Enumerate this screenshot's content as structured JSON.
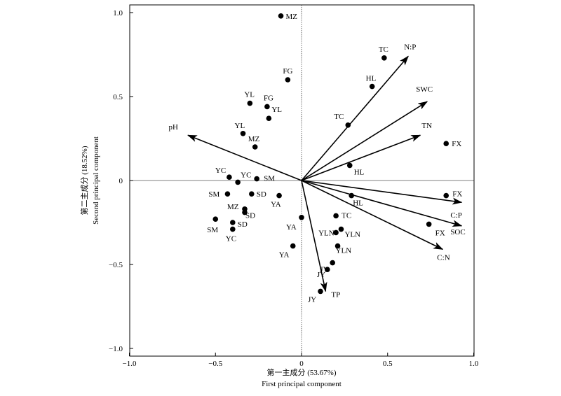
{
  "chart_data": {
    "type": "scatter",
    "xlabel_cn": "第一主成分 (53.67%)",
    "xlabel_en": "First principal component",
    "ylabel_cn": "第二主成分 (18.52%)",
    "ylabel_en": "Second principal component",
    "xlim": [
      -1.0,
      1.0
    ],
    "ylim": [
      -1.0,
      1.0
    ],
    "xticks": [
      {
        "value": -1.0,
        "label": "−1.0"
      },
      {
        "value": -0.5,
        "label": "−0.5"
      },
      {
        "value": 0,
        "label": "0"
      },
      {
        "value": 0.5,
        "label": "0.5"
      },
      {
        "value": 1.0,
        "label": "1.0"
      }
    ],
    "yticks": [
      {
        "value": 1.0,
        "label": "1.0"
      },
      {
        "value": 0.5,
        "label": "0.5"
      },
      {
        "value": 0,
        "label": "0"
      },
      {
        "value": -0.5,
        "label": "−0.5"
      },
      {
        "value": -1.0,
        "label": "−1.0"
      }
    ],
    "vectors": [
      {
        "name": "pH",
        "x": -0.66,
        "y": 0.27
      },
      {
        "name": "N:P",
        "x": 0.62,
        "y": 0.74
      },
      {
        "name": "SWC",
        "x": 0.73,
        "y": 0.47
      },
      {
        "name": "TN",
        "x": 0.69,
        "y": 0.27
      },
      {
        "name": "C:P",
        "x": 0.93,
        "y": -0.13
      },
      {
        "name": "SOC",
        "x": 0.93,
        "y": -0.27
      },
      {
        "name": "C:N",
        "x": 0.82,
        "y": -0.41
      },
      {
        "name": "TP",
        "x": 0.14,
        "y": -0.66
      }
    ],
    "points": [
      {
        "name": "MZ",
        "x": -0.12,
        "y": 0.98
      },
      {
        "name": "TC",
        "x": 0.48,
        "y": 0.73
      },
      {
        "name": "FG",
        "x": -0.08,
        "y": 0.6
      },
      {
        "name": "HL",
        "x": 0.41,
        "y": 0.56
      },
      {
        "name": "YL",
        "x": -0.3,
        "y": 0.46
      },
      {
        "name": "FG",
        "x": -0.2,
        "y": 0.44
      },
      {
        "name": "YL",
        "x": -0.19,
        "y": 0.37
      },
      {
        "name": "TC",
        "x": 0.27,
        "y": 0.33
      },
      {
        "name": "YL",
        "x": -0.34,
        "y": 0.28
      },
      {
        "name": "MZ",
        "x": -0.27,
        "y": 0.2
      },
      {
        "name": "FX",
        "x": 0.84,
        "y": 0.22
      },
      {
        "name": "HL",
        "x": 0.28,
        "y": 0.09
      },
      {
        "name": "YC",
        "x": -0.42,
        "y": 0.02
      },
      {
        "name": "YC",
        "x": -0.37,
        "y": -0.01
      },
      {
        "name": "SM",
        "x": -0.26,
        "y": 0.01
      },
      {
        "name": "SM",
        "x": -0.43,
        "y": -0.08
      },
      {
        "name": "SD",
        "x": -0.29,
        "y": -0.08
      },
      {
        "name": "YA",
        "x": -0.13,
        "y": -0.09
      },
      {
        "name": "FX",
        "x": 0.84,
        "y": -0.09
      },
      {
        "name": "HL",
        "x": 0.29,
        "y": -0.09
      },
      {
        "name": "MZ",
        "x": -0.33,
        "y": -0.17
      },
      {
        "name": "SD",
        "x": -0.33,
        "y": -0.19
      },
      {
        "name": "SM",
        "x": -0.5,
        "y": -0.23
      },
      {
        "name": "SD",
        "x": -0.4,
        "y": -0.25
      },
      {
        "name": "YC",
        "x": -0.4,
        "y": -0.29
      },
      {
        "name": "YA",
        "x": 0.0,
        "y": -0.22
      },
      {
        "name": "TC",
        "x": 0.2,
        "y": -0.21
      },
      {
        "name": "FX",
        "x": 0.74,
        "y": -0.26
      },
      {
        "name": "YLN",
        "x": 0.23,
        "y": -0.29
      },
      {
        "name": "YLN",
        "x": 0.2,
        "y": -0.31
      },
      {
        "name": "YLN",
        "x": 0.21,
        "y": -0.39
      },
      {
        "name": "YA",
        "x": -0.05,
        "y": -0.39
      },
      {
        "name": "JY",
        "x": 0.18,
        "y": -0.49
      },
      {
        "name": "JY",
        "x": 0.15,
        "y": -0.53
      },
      {
        "name": "JY",
        "x": 0.11,
        "y": -0.66
      }
    ]
  }
}
